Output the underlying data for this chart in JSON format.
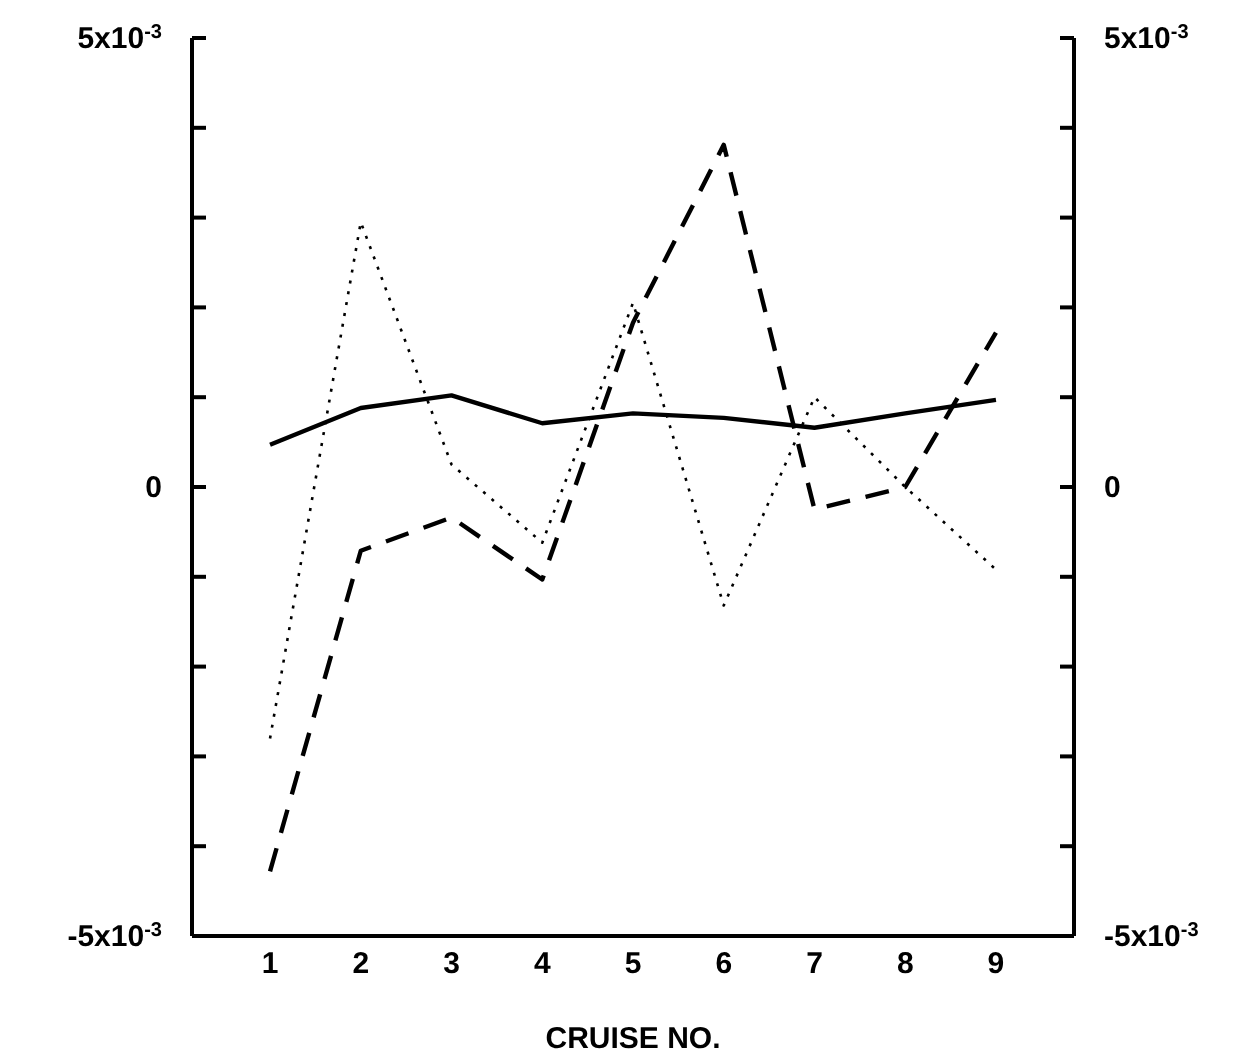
{
  "chart_data": {
    "type": "line",
    "xlabel": "CRUISE NO.",
    "categories": [
      "1",
      "2",
      "3",
      "4",
      "5",
      "6",
      "7",
      "8",
      "9"
    ],
    "series": [
      {
        "color": "#000000",
        "line_style": "solid",
        "values": [
          0.00047,
          0.00088,
          0.00102,
          0.00071,
          0.00082,
          0.00077,
          0.00066,
          0.00082,
          0.00097
        ]
      },
      {
        "color": "#000000",
        "line_style": "dashed",
        "values": [
          -0.00428,
          -0.00071,
          -0.00034,
          -0.00103,
          0.00183,
          0.00381,
          -0.00025,
          0,
          0.00172
        ]
      },
      {
        "color": "#000000",
        "line_style": "dotted",
        "values": [
          -0.0028,
          0.00295,
          0.00025,
          -0.00062,
          0.00205,
          -0.00132,
          0.001,
          0,
          -0.00092
        ]
      }
    ],
    "ylim": [
      -0.005,
      0.005
    ],
    "yticks": [
      {
        "value": -0.005,
        "label": "-5x10$^{-3}$"
      },
      {
        "value": -0.004,
        "label": null
      },
      {
        "value": -0.003,
        "label": null
      },
      {
        "value": -0.002,
        "label": null
      },
      {
        "value": -0.001,
        "label": null
      },
      0,
      {
        "value": 0.001,
        "label": null
      },
      {
        "value": 0.002,
        "label": null
      },
      {
        "value": 0.003,
        "label": null
      },
      {
        "value": 0.004,
        "label": null
      },
      {
        "value": 0.005,
        "label": "5x10$^{-3}$"
      }
    ],
    "y2lim": [
      -0.005,
      0.005
    ],
    "y2ticks": [
      {
        "value": -0.005,
        "label": "-5x10$^{-3}$"
      },
      {
        "value": -0.004,
        "label": null
      },
      {
        "value": -0.003,
        "label": null
      },
      {
        "value": -0.002,
        "label": null
      },
      {
        "value": -0.001,
        "label": null
      },
      0,
      {
        "value": 0.001,
        "label": null
      },
      {
        "value": 0.002,
        "label": null
      },
      {
        "value": 0.003,
        "label": null
      },
      {
        "value": 0.004,
        "label": null
      },
      {
        "value": 0.005,
        "label": "5x10$^{-3}$"
      }
    ],
    "grid": false,
    "legend": false,
    "marker": "none"
  }
}
